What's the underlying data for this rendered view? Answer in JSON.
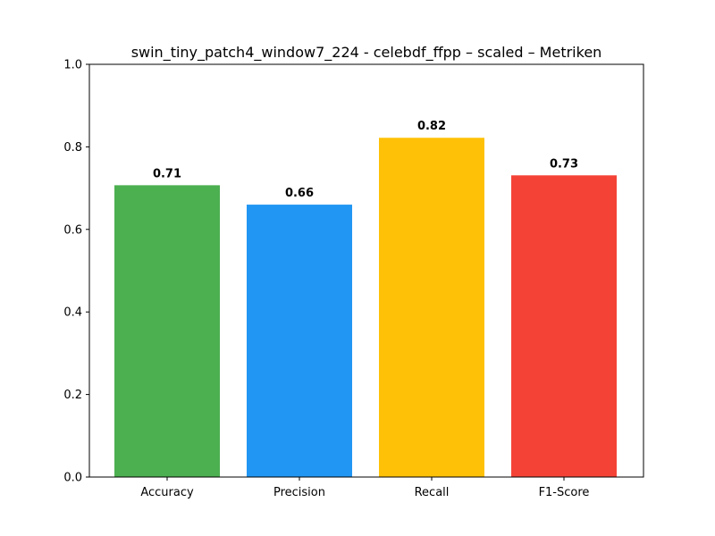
{
  "chart_data": {
    "type": "bar",
    "title": "swin_tiny_patch4_window7_224 - celebdf_ffpp – scaled – Metriken",
    "xlabel": "",
    "ylabel": "",
    "categories": [
      "Accuracy",
      "Precision",
      "Recall",
      "F1-Score"
    ],
    "values": [
      0.707,
      0.66,
      0.822,
      0.731
    ],
    "data_labels": [
      "0.71",
      "0.66",
      "0.82",
      "0.73"
    ],
    "colors": [
      "#4CAF50",
      "#2196F3",
      "#FFC107",
      "#F44336"
    ],
    "ylim": [
      0,
      1.0
    ],
    "yticks": [
      0.0,
      0.2,
      0.4,
      0.6,
      0.8,
      1.0
    ],
    "ytick_labels": [
      "0.0",
      "0.2",
      "0.4",
      "0.6",
      "0.8",
      "1.0"
    ],
    "grid": false,
    "legend": "none"
  }
}
